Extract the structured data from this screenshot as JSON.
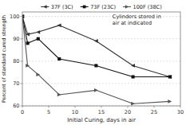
{
  "chart_data": {
    "type": "line",
    "xlabel": "Initial Curing, days in air",
    "ylabel": "Percent of standard cured strength",
    "annotation": "Cylinders stored in\nair at indicated",
    "x": [
      0,
      1,
      3,
      7,
      14,
      21,
      28
    ],
    "xlim": [
      0,
      30
    ],
    "ylim": [
      60,
      102
    ],
    "xticks": [
      0,
      5,
      10,
      15,
      20,
      25,
      30
    ],
    "yticks": [
      60,
      70,
      80,
      90,
      100
    ],
    "grid": true,
    "legend": "top",
    "series": [
      {
        "name": "37F (3C)",
        "color": "#333333",
        "marker": "triangle-left",
        "values": [
          100,
          92,
          93,
          96,
          89,
          78,
          73
        ]
      },
      {
        "name": "73F (23C)",
        "color": "#111111",
        "marker": "square",
        "values": [
          100,
          88,
          90,
          81,
          78,
          73,
          73
        ]
      },
      {
        "name": "100F (38C)",
        "color": "#555555",
        "marker": "triangle-right",
        "values": [
          100,
          78,
          74,
          65,
          67,
          61,
          62
        ]
      }
    ]
  }
}
